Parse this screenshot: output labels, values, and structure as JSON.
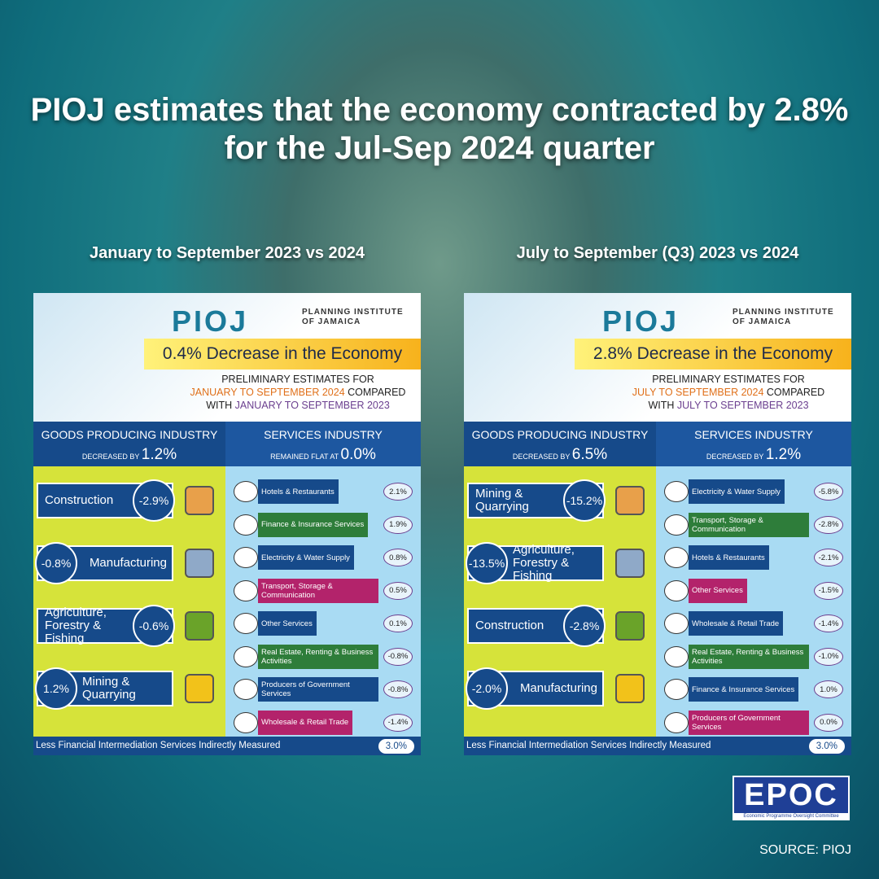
{
  "title": "PIOJ estimates that the economy contracted by 2.8% for the Jul-Sep 2024 quarter",
  "panels": [
    {
      "heading": "January to September 2023 vs 2024",
      "logo": "PIOJ",
      "org": "PLANNING INSTITUTE OF JAMAICA",
      "headline": "0.4% Decrease in the Economy",
      "subtitle": [
        "PRELIMINARY ESTIMATES FOR",
        "JANUARY TO SEPTEMBER 2024",
        "COMPARED",
        "WITH",
        "JANUARY TO SEPTEMBER 2023"
      ],
      "goods": {
        "label": "GOODS PRODUCING INDUSTRY",
        "change_text": "DECREASED BY",
        "change": "1.2%",
        "items": [
          {
            "name": "Construction",
            "value": "-2.9%"
          },
          {
            "name": "Manufacturing",
            "value": "-0.8%"
          },
          {
            "name": "Agriculture, Forestry & Fishing",
            "value": "-0.6%"
          },
          {
            "name": "Mining & Quarrying",
            "value": "1.2%"
          }
        ]
      },
      "services": {
        "label": "SERVICES INDUSTRY",
        "change_text": "REMAINED FLAT AT",
        "change": "0.0%",
        "items": [
          {
            "name": "Hotels & Restaurants",
            "value": "2.1%",
            "color": "#164a8a"
          },
          {
            "name": "Finance & Insurance Services",
            "value": "1.9%",
            "color": "#2e7d3a"
          },
          {
            "name": "Electricity & Water Supply",
            "value": "0.8%",
            "color": "#164a8a"
          },
          {
            "name": "Transport, Storage & Communication",
            "value": "0.5%",
            "color": "#b3236b"
          },
          {
            "name": "Other Services",
            "value": "0.1%",
            "color": "#164a8a"
          },
          {
            "name": "Real Estate, Renting & Business Activities",
            "value": "-0.8%",
            "color": "#2e7d3a"
          },
          {
            "name": "Producers of Government Services",
            "value": "-0.8%",
            "color": "#164a8a"
          },
          {
            "name": "Wholesale & Retail Trade",
            "value": "-1.4%",
            "color": "#b3236b"
          }
        ]
      },
      "fisim": {
        "label": "Less Financial Intermediation Services Indirectly Measured",
        "value": "3.0%"
      }
    },
    {
      "heading": "July to September (Q3) 2023 vs 2024",
      "logo": "PIOJ",
      "org": "PLANNING INSTITUTE OF JAMAICA",
      "headline": "2.8% Decrease in the Economy",
      "subtitle": [
        "PRELIMINARY ESTIMATES FOR",
        "JULY TO SEPTEMBER 2024",
        "COMPARED",
        "WITH",
        "JULY TO SEPTEMBER 2023"
      ],
      "goods": {
        "label": "GOODS PRODUCING INDUSTRY",
        "change_text": "DECREASED BY",
        "change": "6.5%",
        "items": [
          {
            "name": "Mining & Quarrying",
            "value": "-15.2%"
          },
          {
            "name": "Agriculture, Forestry & Fishing",
            "value": "-13.5%"
          },
          {
            "name": "Construction",
            "value": "-2.8%"
          },
          {
            "name": "Manufacturing",
            "value": "-2.0%"
          }
        ]
      },
      "services": {
        "label": "SERVICES INDUSTRY",
        "change_text": "DECREASED BY",
        "change": "1.2%",
        "items": [
          {
            "name": "Electricity & Water Supply",
            "value": "-5.8%",
            "color": "#164a8a"
          },
          {
            "name": "Transport, Storage & Communication",
            "value": "-2.8%",
            "color": "#2e7d3a"
          },
          {
            "name": "Hotels & Restaurants",
            "value": "-2.1%",
            "color": "#164a8a"
          },
          {
            "name": "Other Services",
            "value": "-1.5%",
            "color": "#b3236b"
          },
          {
            "name": "Wholesale & Retail Trade",
            "value": "-1.4%",
            "color": "#164a8a"
          },
          {
            "name": "Real Estate, Renting & Business Activities",
            "value": "-1.0%",
            "color": "#2e7d3a"
          },
          {
            "name": "Finance & Insurance Services",
            "value": "1.0%",
            "color": "#164a8a"
          },
          {
            "name": "Producers of Government Services",
            "value": "0.0%",
            "color": "#b3236b"
          }
        ]
      },
      "fisim": {
        "label": "Less Financial Intermediation Services Indirectly Measured",
        "value": "3.0%"
      }
    }
  ],
  "brand": {
    "name": "EPOC",
    "tagline": "Economic Programme Oversight Committee"
  },
  "source": "SOURCE: PIOJ"
}
